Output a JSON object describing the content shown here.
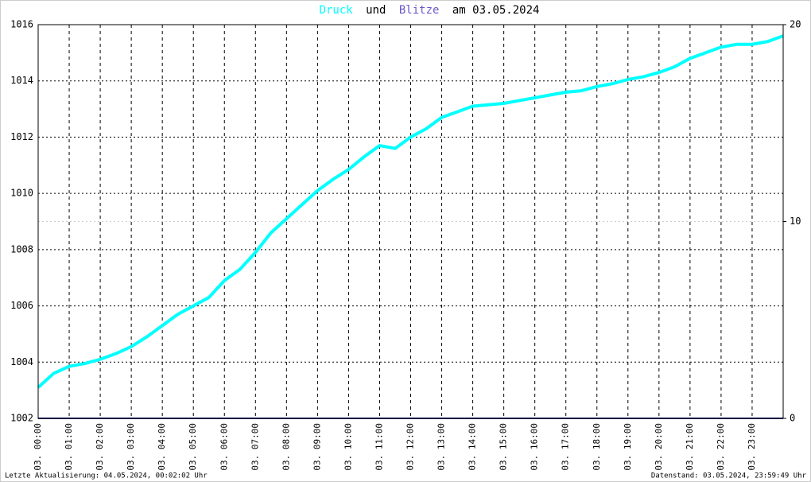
{
  "chart_data": {
    "type": "line",
    "title_words": [
      "und",
      "am 03.05.2024"
    ],
    "notes": [
      "Letzte Aktualisierung: 04.05.2024, 00:02:02 Uhr",
      "Datenstand: 03.05.2024, 23:59:49 Uhr"
    ],
    "x": [
      0,
      0.5,
      1,
      1.5,
      2,
      2.5,
      3,
      3.5,
      4,
      4.5,
      5,
      5.5,
      6,
      6.5,
      7,
      7.5,
      8,
      8.5,
      9,
      9.5,
      10,
      10.5,
      11,
      11.5,
      12,
      12.5,
      13,
      13.5,
      14,
      14.5,
      15,
      15.5,
      16,
      16.5,
      17,
      17.5,
      18,
      18.5,
      19,
      19.5,
      20,
      20.5,
      21,
      21.5,
      22,
      22.5,
      23,
      23.5,
      24
    ],
    "series": [
      {
        "name": "Druck",
        "color": "#00ffff",
        "values": [
          1003.1,
          1003.6,
          1003.85,
          1003.95,
          1004.1,
          1004.3,
          1004.55,
          1004.9,
          1005.3,
          1005.7,
          1006.0,
          1006.3,
          1006.9,
          1007.3,
          1007.9,
          1008.6,
          1009.1,
          1009.6,
          1010.1,
          1010.5,
          1010.85,
          1011.3,
          1011.7,
          1011.6,
          1012.0,
          1012.3,
          1012.7,
          1012.9,
          1013.1,
          1013.15,
          1013.2,
          1013.3,
          1013.4,
          1013.5,
          1013.6,
          1013.65,
          1013.8,
          1013.9,
          1014.05,
          1014.15,
          1014.3,
          1014.5,
          1014.8,
          1015.0,
          1015.2,
          1015.3,
          1015.3,
          1015.4,
          1015.6
        ]
      },
      {
        "name": "Blitze",
        "color": "#6a5acd",
        "axis": "y2",
        "values": [
          0,
          0,
          0,
          0,
          0,
          0,
          0,
          0,
          0,
          0,
          0,
          0,
          0,
          0,
          0,
          0,
          0,
          0,
          0,
          0,
          0,
          0,
          0,
          0,
          0,
          0,
          0,
          0,
          0,
          0,
          0,
          0,
          0,
          0,
          0,
          0,
          0,
          0,
          0,
          0,
          0,
          0,
          0,
          0,
          0,
          0,
          0,
          0,
          0
        ]
      }
    ],
    "xlim": [
      0,
      24
    ],
    "xticks": [
      {
        "value": 0,
        "label": "03. 00:00"
      },
      {
        "value": 1,
        "label": "03. 01:00"
      },
      {
        "value": 2,
        "label": "03. 02:00"
      },
      {
        "value": 3,
        "label": "03. 03:00"
      },
      {
        "value": 4,
        "label": "03. 04:00"
      },
      {
        "value": 5,
        "label": "03. 05:00"
      },
      {
        "value": 6,
        "label": "03. 06:00"
      },
      {
        "value": 7,
        "label": "03. 07:00"
      },
      {
        "value": 8,
        "label": "03. 08:00"
      },
      {
        "value": 9,
        "label": "03. 09:00"
      },
      {
        "value": 10,
        "label": "03. 10:00"
      },
      {
        "value": 11,
        "label": "03. 11:00"
      },
      {
        "value": 12,
        "label": "03. 12:00"
      },
      {
        "value": 13,
        "label": "03. 13:00"
      },
      {
        "value": 14,
        "label": "03. 14:00"
      },
      {
        "value": 15,
        "label": "03. 15:00"
      },
      {
        "value": 16,
        "label": "03. 16:00"
      },
      {
        "value": 17,
        "label": "03. 17:00"
      },
      {
        "value": 18,
        "label": "03. 18:00"
      },
      {
        "value": 19,
        "label": "03. 19:00"
      },
      {
        "value": 20,
        "label": "03. 20:00"
      },
      {
        "value": 21,
        "label": "03. 21:00"
      },
      {
        "value": 22,
        "label": "03. 22:00"
      },
      {
        "value": 23,
        "label": "03. 23:00"
      }
    ],
    "ylim": [
      1002,
      1016
    ],
    "yticks": [
      1002,
      1004,
      1006,
      1008,
      1010,
      1012,
      1014,
      1016
    ],
    "y2lim": [
      0,
      20
    ],
    "y2ticks": [
      0,
      10,
      20
    ],
    "grid": true
  }
}
